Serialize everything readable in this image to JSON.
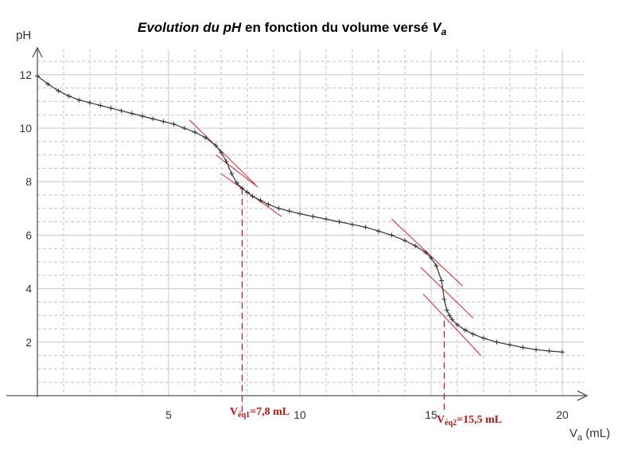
{
  "chart_data": {
    "type": "line",
    "title_parts": [
      {
        "text": "Evolution du ",
        "style": "italic-bold"
      },
      {
        "text": "pH",
        "style": "italic-bold"
      },
      {
        "text": " en fonction du volume versé ",
        "style": "bold"
      },
      {
        "text": "V",
        "style": "italic-bold"
      },
      {
        "text": "a",
        "style": "italic-bold-sub"
      }
    ],
    "xlabel": "V",
    "xlabel_sub": "a",
    "xlabel_unit": " (mL)",
    "ylabel": "pH",
    "xlim": [
      0,
      20.5
    ],
    "ylim": [
      0,
      12.7
    ],
    "x_ticks": [
      5,
      10,
      15,
      20
    ],
    "y_ticks": [
      2,
      4,
      6,
      8,
      10,
      12
    ],
    "grid": true,
    "series": [
      {
        "marker": "+",
        "color": "#333333",
        "x": [
          0,
          0.4,
          0.8,
          1.2,
          1.6,
          2.0,
          2.4,
          2.8,
          3.2,
          3.6,
          4.0,
          4.4,
          4.8,
          5.2,
          5.6,
          6.0,
          6.4,
          6.8,
          7.0,
          7.2,
          7.4,
          7.6,
          7.8,
          8.0,
          8.2,
          8.5,
          8.8,
          9.2,
          9.6,
          10.0,
          10.5,
          11.0,
          11.5,
          12.0,
          12.5,
          13.0,
          13.5,
          14.0,
          14.4,
          14.8,
          15.0,
          15.2,
          15.4,
          15.5,
          15.6,
          15.7,
          15.8,
          16.0,
          16.3,
          16.6,
          17.0,
          17.5,
          18.0,
          18.5,
          19.0,
          19.5,
          20.0
        ],
        "y": [
          11.95,
          11.65,
          11.4,
          11.2,
          11.05,
          10.95,
          10.85,
          10.75,
          10.65,
          10.55,
          10.45,
          10.35,
          10.25,
          10.15,
          10.0,
          9.85,
          9.65,
          9.35,
          9.1,
          8.75,
          8.3,
          7.95,
          7.75,
          7.6,
          7.45,
          7.3,
          7.15,
          7.0,
          6.9,
          6.8,
          6.7,
          6.6,
          6.5,
          6.4,
          6.3,
          6.15,
          6.0,
          5.8,
          5.6,
          5.35,
          5.15,
          4.85,
          4.3,
          3.6,
          3.2,
          3.0,
          2.85,
          2.65,
          2.45,
          2.3,
          2.15,
          2.0,
          1.9,
          1.8,
          1.72,
          1.67,
          1.63
        ]
      }
    ],
    "tangents": [
      {
        "x": [
          5.8,
          8.3
        ],
        "y": [
          10.3,
          7.9
        ]
      },
      {
        "x": [
          6.8,
          8.4
        ],
        "y": [
          9.0,
          7.8
        ]
      },
      {
        "x": [
          7.0,
          9.3
        ],
        "y": [
          8.3,
          6.7
        ]
      },
      {
        "x": [
          13.5,
          16.2
        ],
        "y": [
          6.6,
          4.1
        ]
      },
      {
        "x": [
          14.6,
          16.6
        ],
        "y": [
          4.8,
          2.9
        ]
      },
      {
        "x": [
          14.7,
          16.9
        ],
        "y": [
          3.8,
          1.5
        ]
      }
    ],
    "equivalence_lines": [
      {
        "x": 7.8,
        "y_top": 7.75,
        "label": "V",
        "label_sub": "éq1",
        "label_rest": "=7,8 mL"
      },
      {
        "x": 15.5,
        "y_top": 2.8,
        "label": "V",
        "label_sub": "éq2",
        "label_rest": "=15,5 mL"
      }
    ],
    "colors": {
      "curve": "#333333",
      "tangent": "#e02020",
      "annotation": "#d01010",
      "grid_major": "#c8c8c8",
      "grid_minor": "#c0c0c0",
      "axis": "#555555"
    }
  }
}
